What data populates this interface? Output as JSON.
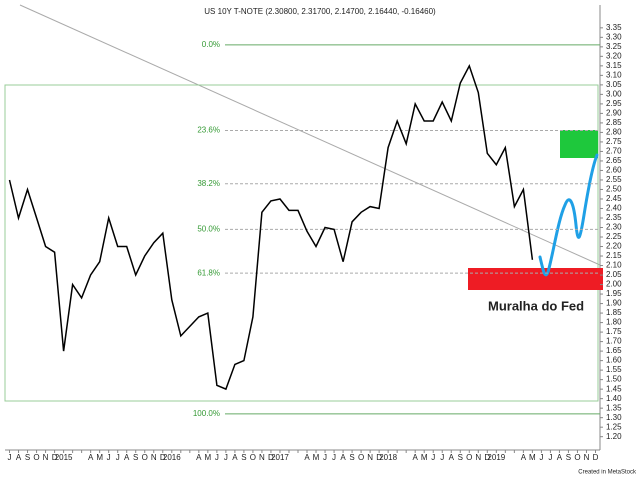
{
  "chart_data": {
    "type": "line",
    "title": "US 10Y T-NOTE (2.30800, 2.31700, 2.14700, 2.16440, -0.16460)",
    "footer": "Created in MetaStock",
    "annotation": "Muralha do Fed",
    "color": "#000000",
    "categories": [
      "J",
      "A",
      "S",
      "O",
      "N",
      "D",
      "2015",
      null,
      null,
      "A",
      "M",
      "J",
      "J",
      "A",
      "S",
      "O",
      "N",
      "D",
      "2016",
      null,
      null,
      "A",
      "M",
      "J",
      "J",
      "A",
      "S",
      "O",
      "N",
      "D",
      "2017",
      null,
      null,
      "A",
      "M",
      "J",
      "J",
      "A",
      "S",
      "O",
      "N",
      "D",
      "2018",
      null,
      null,
      "A",
      "M",
      "J",
      "J",
      "A",
      "S",
      "O",
      "N",
      "D",
      "2019",
      null,
      null,
      "A",
      "M",
      "J",
      "J",
      "A",
      "S",
      "O",
      "N",
      "D"
    ],
    "values": [
      2.55,
      2.35,
      2.5,
      2.35,
      2.2,
      2.17,
      1.65,
      2.0,
      1.93,
      2.05,
      2.12,
      2.35,
      2.2,
      2.2,
      2.05,
      2.15,
      2.22,
      2.27,
      1.92,
      1.73,
      1.78,
      1.83,
      1.85,
      1.47,
      1.45,
      1.58,
      1.6,
      1.83,
      2.38,
      2.44,
      2.45,
      2.39,
      2.39,
      2.28,
      2.2,
      2.3,
      2.29,
      2.12,
      2.33,
      2.38,
      2.41,
      2.4,
      2.72,
      2.86,
      2.74,
      2.95,
      2.86,
      2.86,
      2.96,
      2.86,
      3.06,
      3.15,
      3.01,
      2.69,
      2.63,
      2.72,
      2.41,
      2.5,
      2.13,
      null,
      null,
      null,
      null,
      null,
      null,
      null
    ],
    "fib_levels": [
      {
        "label": "0.0%",
        "value": 3.26
      },
      {
        "label": "23.6%",
        "value": 2.81
      },
      {
        "label": "38.2%",
        "value": 2.53
      },
      {
        "label": "50.0%",
        "value": 2.29
      },
      {
        "label": "61.8%",
        "value": 2.06
      },
      {
        "label": "100.0%",
        "value": 1.32
      }
    ],
    "ylim": [
      1.13,
      3.47
    ],
    "yticks": [
      {
        "value": 1.2,
        "label": "1.20"
      },
      {
        "value": 1.25,
        "label": "1.25"
      },
      {
        "value": 1.3,
        "label": "1.30"
      },
      {
        "value": 1.35,
        "label": "1.35"
      },
      {
        "value": 1.4,
        "label": "1.40"
      },
      {
        "value": 1.45,
        "label": "1.45"
      },
      {
        "value": 1.5,
        "label": "1.50"
      },
      {
        "value": 1.55,
        "label": "1.55"
      },
      {
        "value": 1.6,
        "label": "1.60"
      },
      {
        "value": 1.65,
        "label": "1.65"
      },
      {
        "value": 1.7,
        "label": "1.70"
      },
      {
        "value": 1.75,
        "label": "1.75"
      },
      {
        "value": 1.8,
        "label": "1.80"
      },
      {
        "value": 1.85,
        "label": "1.85"
      },
      {
        "value": 1.9,
        "label": "1.90"
      },
      {
        "value": 1.95,
        "label": "1.95"
      },
      {
        "value": 2,
        "label": "2.00"
      },
      {
        "value": 2.05,
        "label": "2.05"
      },
      {
        "value": 2.1,
        "label": "2.10"
      },
      {
        "value": 2.15,
        "label": "2.15"
      },
      {
        "value": 2.2,
        "label": "2.20"
      },
      {
        "value": 2.25,
        "label": "2.25"
      },
      {
        "value": 2.3,
        "label": "2.30"
      },
      {
        "value": 2.35,
        "label": "2.35"
      },
      {
        "value": 2.4,
        "label": "2.40"
      },
      {
        "value": 2.45,
        "label": "2.45"
      },
      {
        "value": 2.5,
        "label": "2.50"
      },
      {
        "value": 2.55,
        "label": "2.55"
      },
      {
        "value": 2.6,
        "label": "2.60"
      },
      {
        "value": 2.65,
        "label": "2.65"
      },
      {
        "value": 2.7,
        "label": "2.70"
      },
      {
        "value": 2.75,
        "label": "2.75"
      },
      {
        "value": 2.8,
        "label": "2.80"
      },
      {
        "value": 2.85,
        "label": "2.85"
      },
      {
        "value": 2.9,
        "label": "2.90"
      },
      {
        "value": 2.95,
        "label": "2.95"
      },
      {
        "value": 3,
        "label": "3.00"
      },
      {
        "value": 3.05,
        "label": "3.05"
      },
      {
        "value": 3.1,
        "label": "3.10"
      },
      {
        "value": 3.15,
        "label": "3.15"
      },
      {
        "value": 3.2,
        "label": "3.20"
      },
      {
        "value": 3.25,
        "label": "3.25"
      },
      {
        "value": 3.3,
        "label": "3.30"
      },
      {
        "value": 3.35,
        "label": "3.35"
      }
    ]
  }
}
